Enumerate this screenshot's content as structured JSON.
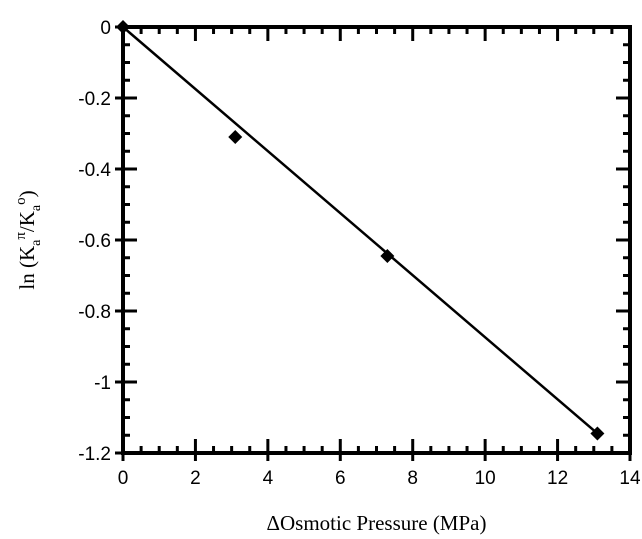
{
  "chart_data": {
    "type": "scatter",
    "title": "",
    "xlabel": "ΔOsmotic Pressure (MPa)",
    "ylabel_parts": {
      "prefix": "ln (K",
      "sub1": "a",
      "sup1": "π",
      "mid": "/K",
      "sub2": "a",
      "sup2": "o",
      "suffix": ")"
    },
    "xlim": [
      0,
      14
    ],
    "ylim": [
      -1.2,
      0
    ],
    "x_ticks": [
      0,
      2,
      4,
      6,
      8,
      10,
      12,
      14
    ],
    "y_ticks": [
      0,
      -0.2,
      -0.4,
      -0.6,
      -0.8,
      -1,
      -1.2
    ],
    "x_tick_labels": [
      "0",
      "2",
      "4",
      "6",
      "8",
      "10",
      "12",
      "14"
    ],
    "y_tick_labels": [
      "0",
      "-0.2",
      "-0.4",
      "-0.6",
      "-0.8",
      "-1",
      "-1.2"
    ],
    "series": [
      {
        "marker": "diamond",
        "x": [
          0,
          3.1,
          7.3,
          13.1
        ],
        "y": [
          0,
          -0.31,
          -0.645,
          -1.145
        ]
      }
    ],
    "fit_line": {
      "x": [
        0,
        13.1
      ],
      "y": [
        0,
        -1.145
      ]
    },
    "grid": false,
    "colors": {
      "line": "#000000",
      "marker": "#000000"
    }
  }
}
